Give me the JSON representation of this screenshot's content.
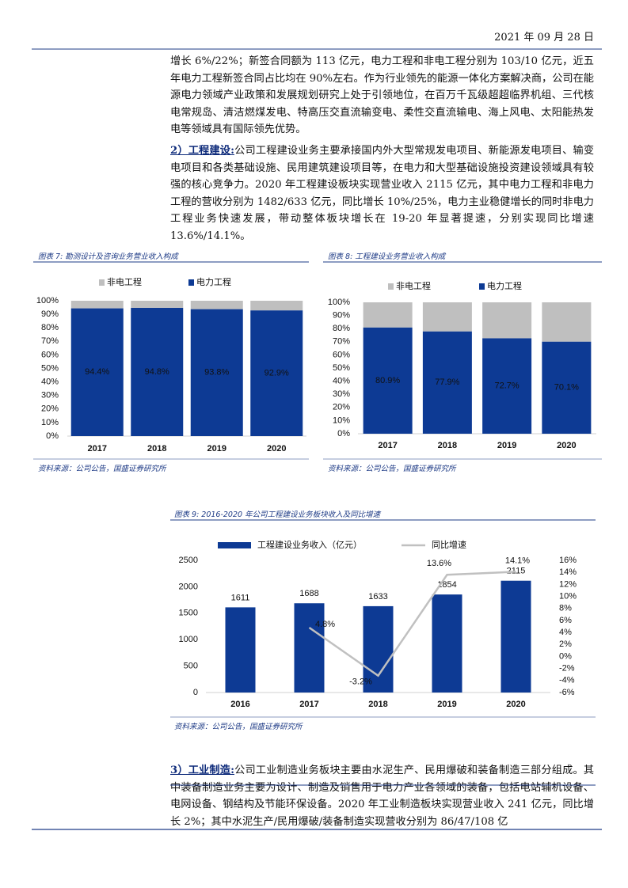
{
  "header": {
    "date": "2021 年 09 月 28 日"
  },
  "paragraphs": [
    {
      "text": "增长 6%/22%；新签合同额为 113 亿元，电力工程和非电工程分别为 103/10 亿元，近五年电力工程新签合同占比均在 90%左右。作为行业领先的能源一体化方案解决商，公司在能源电力领域产业政策和发展规划研究上处于引领地位，在百万千瓦级超超临界机组、三代核电常规岛、清洁燃煤发电、特高压交直流输变电、柔性交直流输电、海上风电、太阳能热发电等领域具有国际领先优势。"
    },
    {
      "lead": "2）工程建设:",
      "text": "公司工程建设业务主要承接国内外大型常规发电项目、新能源发电项目、输变电项目和各类基础设施、民用建筑建设项目等，在电力和大型基础设施投资建设领域具有较强的核心竞争力。2020 年工程建设板块实现营业收入 2115 亿元，其中电力工程和非电力工程的营收分别为 1482/633 亿元，同比增长 10%/25%，电力主业稳健增长的同时非电力工程业务快速发展，带动整体板块增长在 19-20 年显著提速，分别实现同比增速 13.6%/14.1%。"
    },
    {
      "lead": "3）工业制造:",
      "text": "公司工业制造业务板块主要由水泥生产、民用爆破和装备制造三部分组成。其中装备制造业务主要为设计、制造及销售用于电力产业各领域的装备，包括电站辅机设备、电网设备、钢结构及节能环保设备。2020 年工业制造板块实现营业收入 241 亿元，同比增长 2%；其中水泥生产/民用爆破/装备制造实现营收分别为 86/47/108 亿"
    }
  ],
  "chart_data": [
    {
      "type": "stacked_bar",
      "title": "图表 7: 勘测设计及咨询业务营业收入构成",
      "source": "资料来源：公司公告，国盛证券研究所",
      "categories": [
        "2017",
        "2018",
        "2019",
        "2020"
      ],
      "series": [
        {
          "name": "非电工程",
          "color": "#bfbfbf",
          "values": [
            5.6,
            5.2,
            6.2,
            7.1
          ]
        },
        {
          "name": "电力工程",
          "color": "#0d3a94",
          "values": [
            94.4,
            94.8,
            93.8,
            92.9
          ],
          "value_labels": [
            "94.4%",
            "94.8%",
            "93.8%",
            "92.9%"
          ]
        }
      ],
      "ylim": [
        0,
        100
      ],
      "yticks": [
        {
          "value": 0,
          "label": "0%"
        },
        {
          "value": 10,
          "label": "10%"
        },
        {
          "value": 20,
          "label": "20%"
        },
        {
          "value": 30,
          "label": "30%"
        },
        {
          "value": 40,
          "label": "40%"
        },
        {
          "value": 50,
          "label": "50%"
        },
        {
          "value": 60,
          "label": "60%"
        },
        {
          "value": 70,
          "label": "70%"
        },
        {
          "value": 80,
          "label": "80%"
        },
        {
          "value": 90,
          "label": "90%"
        },
        {
          "value": 100,
          "label": "100%"
        }
      ]
    },
    {
      "type": "stacked_bar",
      "title": "图表 8: 工程建设业务营业收入构成",
      "source": "资料来源：公司公告，国盛证券研究所",
      "categories": [
        "2017",
        "2018",
        "2019",
        "2020"
      ],
      "series": [
        {
          "name": "非电工程",
          "color": "#bfbfbf",
          "values": [
            19.1,
            22.1,
            27.3,
            29.9
          ]
        },
        {
          "name": "电力工程",
          "color": "#0d3a94",
          "values": [
            80.9,
            77.9,
            72.7,
            70.1
          ],
          "value_labels": [
            "80.9%",
            "77.9%",
            "72.7%",
            "70.1%"
          ]
        }
      ],
      "ylim": [
        0,
        100
      ],
      "yticks": [
        {
          "value": 0,
          "label": "0%"
        },
        {
          "value": 10,
          "label": "10%"
        },
        {
          "value": 20,
          "label": "20%"
        },
        {
          "value": 30,
          "label": "30%"
        },
        {
          "value": 40,
          "label": "40%"
        },
        {
          "value": 50,
          "label": "50%"
        },
        {
          "value": 60,
          "label": "60%"
        },
        {
          "value": 70,
          "label": "70%"
        },
        {
          "value": 80,
          "label": "80%"
        },
        {
          "value": 90,
          "label": "90%"
        },
        {
          "value": 100,
          "label": "100%"
        }
      ]
    },
    {
      "type": "bar_line",
      "title": "图表 9: 2016-2020 年公司工程建设业务板块收入及同比增速",
      "source": "资料来源：公司公告，国盛证券研究所",
      "categories": [
        "2016",
        "2017",
        "2018",
        "2019",
        "2020"
      ],
      "series": [
        {
          "name": "工程建设业务收入（亿元）",
          "color": "#0d3a94",
          "values": [
            1611,
            1688,
            1633,
            1854,
            2115
          ]
        },
        {
          "name": "同比增速",
          "color": "#c0c0c0",
          "axis": "y2",
          "values": [
            null,
            4.8,
            -3.2,
            13.6,
            14.1
          ],
          "value_labels": [
            null,
            "4.8%",
            "-3.2%",
            "13.6%",
            "14.1%"
          ]
        }
      ],
      "ylim": [
        0,
        2500
      ],
      "yticks": [
        0,
        500,
        1000,
        1500,
        2000,
        2500
      ],
      "y2lim": [
        -6,
        16
      ],
      "y2ticks": [
        {
          "value": -6,
          "label": "-6%"
        },
        {
          "value": -4,
          "label": "-4%"
        },
        {
          "value": -2,
          "label": "-2%"
        },
        {
          "value": 0,
          "label": "0%"
        },
        {
          "value": 2,
          "label": "2%"
        },
        {
          "value": 4,
          "label": "4%"
        },
        {
          "value": 6,
          "label": "6%"
        },
        {
          "value": 8,
          "label": "8%"
        },
        {
          "value": 10,
          "label": "10%"
        },
        {
          "value": 12,
          "label": "12%"
        },
        {
          "value": 14,
          "label": "14%"
        },
        {
          "value": 16,
          "label": "16%"
        }
      ]
    }
  ]
}
